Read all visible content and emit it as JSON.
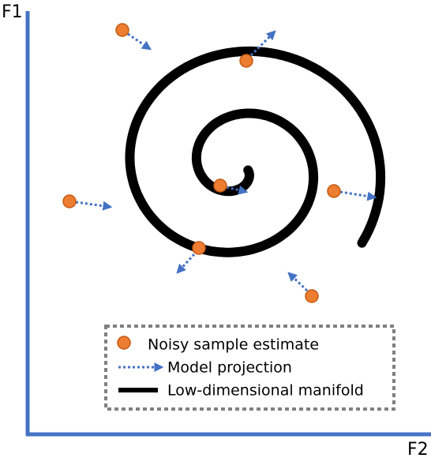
{
  "axes": {
    "y_label": "F1",
    "x_label": "F2"
  },
  "legend": {
    "items": [
      "Noisy sample estimate",
      "Model projection",
      "Low-dimensional manifold"
    ]
  }
}
